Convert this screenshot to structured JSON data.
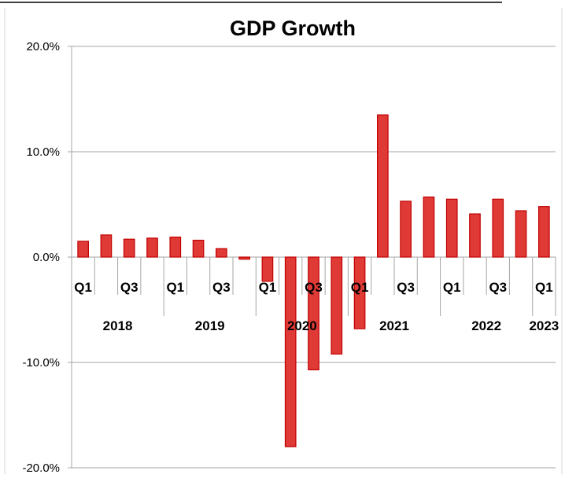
{
  "chart_data": {
    "type": "bar",
    "title": "GDP Growth",
    "xlabel": "",
    "ylabel": "",
    "ylim": [
      -20,
      20
    ],
    "yticks": [
      -20,
      -10,
      0,
      10,
      20
    ],
    "ytick_labels": [
      "-20.0%",
      "-10.0%",
      "0.0%",
      "10.0%",
      "20.0%"
    ],
    "grid": "horizontal",
    "legend": "none",
    "bar_color": "#E03A36",
    "bar_edge_color": "#C00000",
    "categories": [
      "2018 Q1",
      "2018 Q2",
      "2018 Q3",
      "2018 Q4",
      "2019 Q1",
      "2019 Q2",
      "2019 Q3",
      "2019 Q4",
      "2020 Q1",
      "2020 Q2",
      "2020 Q3",
      "2020 Q4",
      "2021 Q1",
      "2021 Q2",
      "2021 Q3",
      "2021 Q4",
      "2022 Q1",
      "2022 Q2",
      "2022 Q3",
      "2022 Q4",
      "2023 Q1"
    ],
    "values": [
      1.5,
      2.1,
      1.7,
      1.8,
      1.9,
      1.6,
      0.8,
      -0.2,
      -2.3,
      -18.0,
      -10.7,
      -9.2,
      -6.8,
      13.5,
      5.3,
      5.7,
      5.5,
      4.1,
      5.5,
      4.4,
      4.8
    ],
    "quarter_tick_labels": [
      "Q1",
      "",
      "Q3",
      "",
      "Q1",
      "",
      "Q3",
      "",
      "Q1",
      "",
      "Q3",
      "",
      "Q1",
      "",
      "Q3",
      "",
      "Q1",
      "",
      "Q3",
      "",
      "Q1"
    ],
    "year_groups": [
      {
        "label": "2018",
        "quarters": 4
      },
      {
        "label": "2019",
        "quarters": 4
      },
      {
        "label": "2020",
        "quarters": 4
      },
      {
        "label": "2021",
        "quarters": 4
      },
      {
        "label": "2022",
        "quarters": 4
      },
      {
        "label": "2023",
        "quarters": 1
      }
    ]
  }
}
